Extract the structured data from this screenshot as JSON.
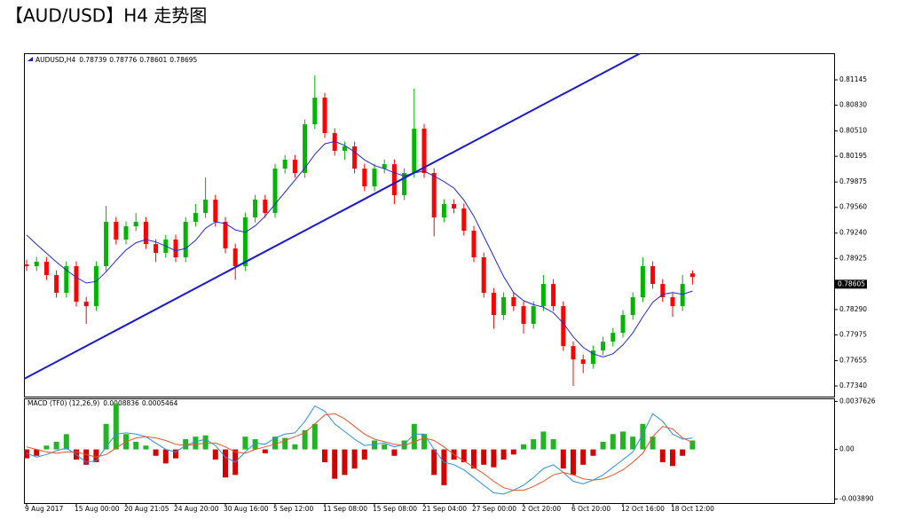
{
  "chart_data": {
    "type": "candlestick",
    "title": "【AUD/USD】H4 走势图",
    "symbol_label": "AUDUSD,H4",
    "categories": [
      "9 Aug 2017",
      null,
      null,
      null,
      null,
      "15 Aug 00:00",
      null,
      null,
      null,
      null,
      "20 Aug 21:05",
      null,
      null,
      null,
      null,
      "24 Aug 20:00",
      null,
      null,
      null,
      null,
      "30 Aug 16:00",
      null,
      null,
      null,
      null,
      "5 Sep 12:00",
      null,
      null,
      null,
      null,
      "11 Sep 08:00",
      null,
      null,
      null,
      null,
      "15 Sep 08:00",
      null,
      null,
      null,
      null,
      "21 Sep 04:00",
      null,
      null,
      null,
      null,
      "27 Sep 00:00",
      null,
      null,
      null,
      null,
      "2 Oct 20:00",
      null,
      null,
      null,
      null,
      "6 Oct 20:00",
      null,
      null,
      null,
      null,
      "12 Oct 16:00",
      null,
      null,
      null,
      null,
      "18 Oct 12:00",
      null,
      null
    ],
    "open": [
      0.7885,
      0.78829,
      0.78884,
      0.78718,
      0.78498,
      0.78829,
      0.78387,
      0.78332,
      0.78829,
      0.7938,
      0.7916,
      0.79325,
      0.7938,
      0.79104,
      0.78994,
      0.7916,
      0.78939,
      0.7938,
      0.7949,
      0.79656,
      0.7938,
      0.79049,
      0.78829,
      0.79435,
      0.79656,
      0.7949,
      0.80042,
      0.80152,
      0.79987,
      0.80593,
      0.80924,
      0.80483,
      0.80263,
      0.80318,
      0.80042,
      0.79821,
      0.80042,
      0.80097,
      0.79711,
      0.79987,
      0.80538,
      0.79987,
      0.79435,
      0.79601,
      0.79546,
      0.7927,
      0.78939,
      0.78498,
      0.78222,
      0.78443,
      0.78332,
      0.78112,
      0.78332,
      0.78608,
      0.78332,
      0.77836,
      0.7767,
      0.77615,
      0.77781,
      0.77891,
      0.78001,
      0.78222,
      0.78443,
      0.78829,
      0.78608,
      0.78443,
      0.78332,
      0.78739
    ],
    "high": [
      0.7891,
      0.78944,
      0.78944,
      0.78778,
      0.78889,
      0.78889,
      0.78447,
      0.78889,
      0.79579,
      0.7944,
      0.79385,
      0.7949,
      0.7944,
      0.79164,
      0.7922,
      0.7922,
      0.7944,
      0.79601,
      0.79932,
      0.79716,
      0.7944,
      0.79109,
      0.79495,
      0.79716,
      0.79716,
      0.80102,
      0.80207,
      0.80212,
      0.80653,
      0.812,
      0.80984,
      0.80543,
      0.80378,
      0.80378,
      0.80102,
      0.80102,
      0.80157,
      0.80157,
      0.80047,
      0.81035,
      0.80598,
      0.80047,
      0.79661,
      0.79661,
      0.79606,
      0.7933,
      0.78999,
      0.78558,
      0.78503,
      0.78503,
      0.78392,
      0.78392,
      0.7872,
      0.78668,
      0.78392,
      0.77896,
      0.7773,
      0.77841,
      0.77951,
      0.78061,
      0.78282,
      0.78503,
      0.78939,
      0.78889,
      0.78668,
      0.78503,
      0.7872,
      0.78776
    ],
    "low": [
      0.7877,
      0.78769,
      0.78658,
      0.78438,
      0.78438,
      0.78327,
      0.78112,
      0.78272,
      0.78769,
      0.791,
      0.791,
      0.79265,
      0.79044,
      0.7888,
      0.78934,
      0.78879,
      0.78879,
      0.7932,
      0.7943,
      0.7932,
      0.78989,
      0.7866,
      0.78769,
      0.79375,
      0.7943,
      0.7943,
      0.79982,
      0.79927,
      0.79927,
      0.80533,
      0.80423,
      0.80203,
      0.8015,
      0.79982,
      0.79761,
      0.79761,
      0.79982,
      0.796,
      0.79651,
      0.79927,
      0.79927,
      0.792,
      0.79375,
      0.79486,
      0.7921,
      0.78879,
      0.78438,
      0.7805,
      0.78162,
      0.78272,
      0.7799,
      0.78052,
      0.78272,
      0.78272,
      0.77776,
      0.7734,
      0.775,
      0.77555,
      0.77721,
      0.77831,
      0.77941,
      0.78162,
      0.78383,
      0.78548,
      0.78383,
      0.782,
      0.78272,
      0.78601
    ],
    "close": [
      0.78829,
      0.78884,
      0.78718,
      0.78498,
      0.78829,
      0.78387,
      0.78332,
      0.78829,
      0.7938,
      0.7916,
      0.79325,
      0.7938,
      0.79104,
      0.78994,
      0.7916,
      0.78939,
      0.7938,
      0.7949,
      0.79656,
      0.7938,
      0.79049,
      0.78829,
      0.79435,
      0.79656,
      0.7949,
      0.80042,
      0.80152,
      0.79987,
      0.80593,
      0.80924,
      0.80483,
      0.80263,
      0.80318,
      0.80042,
      0.79821,
      0.80042,
      0.80097,
      0.79711,
      0.79987,
      0.80538,
      0.79987,
      0.79435,
      0.79601,
      0.79546,
      0.7927,
      0.78939,
      0.78498,
      0.78222,
      0.78443,
      0.78332,
      0.78112,
      0.78332,
      0.78608,
      0.78332,
      0.77836,
      0.7767,
      0.77615,
      0.77781,
      0.77891,
      0.78001,
      0.78222,
      0.78443,
      0.78829,
      0.78608,
      0.78443,
      0.78332,
      0.78608,
      0.78695
    ],
    "up_color": "#00b400",
    "down_color": "#ff0000",
    "ma": {
      "color": "#1f2bd6",
      "values": [
        0.79215,
        0.791,
        0.7899,
        0.7888,
        0.7878,
        0.7869,
        0.7862,
        0.7864,
        0.7876,
        0.789,
        0.7903,
        0.7912,
        0.7916,
        0.7913,
        0.7908,
        0.7902,
        0.7905,
        0.7915,
        0.793,
        0.7938,
        0.7936,
        0.7928,
        0.7925,
        0.7933,
        0.7945,
        0.796,
        0.7975,
        0.799,
        0.8005,
        0.8022,
        0.8035,
        0.8038,
        0.8033,
        0.8025,
        0.8015,
        0.8008,
        0.8004,
        0.7999,
        0.7995,
        0.7999,
        0.8001,
        0.7995,
        0.7988,
        0.798,
        0.7965,
        0.7945,
        0.792,
        0.7895,
        0.787,
        0.785,
        0.784,
        0.7835,
        0.7832,
        0.7825,
        0.7812,
        0.7795,
        0.7782,
        0.7774,
        0.777,
        0.7774,
        0.7785,
        0.78,
        0.782,
        0.7838,
        0.7848,
        0.785,
        0.7848,
        0.7852
      ]
    },
    "trendline": {
      "color": "#1a1ad0",
      "x": [
        -0.25,
        61.76
      ],
      "y": [
        0.77428,
        0.81476
      ]
    },
    "last_price": 0.78605,
    "ylim": [
      0.77208,
      0.81476
    ],
    "yticks": [
      0.81145,
      {
        "value": 0.8083,
        "label": "0.80830"
      },
      {
        "value": 0.8051,
        "label": "0.80510"
      },
      0.80195,
      0.79875,
      {
        "value": 0.7956,
        "label": "0.79560"
      },
      {
        "value": 0.7924,
        "label": "0.79240"
      },
      0.78925,
      {
        "value": 0.7861,
        "label": "0.78610"
      },
      {
        "value": 0.7829,
        "label": "0.78290"
      },
      0.77975,
      0.77655,
      {
        "value": 0.7734,
        "label": "0.77340"
      }
    ],
    "macd": {
      "label": "MACD (TF0) (12,26,9)",
      "histogram": [
        -0.0007,
        -0.0005,
        0.0003,
        0.0006,
        0.0012,
        -0.0008,
        -0.0012,
        -0.001,
        0.002,
        0.0036,
        0.0012,
        0.0006,
        0.0003,
        -0.0005,
        -0.0011,
        -0.0007,
        0.0008,
        0.001,
        0.0011,
        -0.0008,
        -0.0022,
        -0.002,
        0.001,
        0.0008,
        -0.0003,
        0.001,
        0.0009,
        0.0004,
        0.0015,
        0.002,
        -0.001,
        -0.0023,
        -0.002,
        -0.0015,
        -0.0008,
        0.0007,
        0.0004,
        -0.0005,
        0.0007,
        0.002,
        0.0012,
        -0.002,
        -0.0028,
        -0.0008,
        -0.001,
        -0.0015,
        -0.0012,
        -0.0014,
        -0.0008,
        -0.0004,
        0.0004,
        0.0008,
        0.0014,
        0.0008,
        -0.0015,
        -0.002,
        -0.0012,
        -0.0005,
        0.0006,
        0.0012,
        0.0014,
        0.001,
        0.002,
        0.001,
        -0.001,
        -0.0013,
        -0.0005,
        0.0007
      ],
      "macd": [
        -0.0003,
        -0.0006,
        -0.0004,
        -0.0001,
        0.0001,
        -0.0004,
        -0.001,
        -0.0009,
        0.0002,
        0.0012,
        0.0013,
        0.0012,
        0.001,
        0.0005,
        0.0,
        -0.0002,
        0.0003,
        0.0006,
        0.0008,
        0.0003,
        -0.0006,
        -0.001,
        -0.0002,
        0.0005,
        0.0004,
        0.0009,
        0.0012,
        0.0013,
        0.0022,
        0.0034,
        0.003,
        0.002,
        0.0014,
        0.0008,
        0.0003,
        0.0004,
        0.0005,
        0.0002,
        0.0004,
        0.0012,
        0.0012,
        0.0,
        -0.001,
        -0.0012,
        -0.0016,
        -0.0022,
        -0.0028,
        -0.0034,
        -0.0035,
        -0.0032,
        -0.0028,
        -0.0022,
        -0.0015,
        -0.0012,
        -0.0018,
        -0.0025,
        -0.0027,
        -0.0024,
        -0.002,
        -0.0014,
        -0.0008,
        -0.0002,
        0.0012,
        0.0028,
        0.0022,
        0.0012,
        0.0008,
        0.0008836
      ],
      "signal": [
        0.0002,
        0.0,
        -0.0002,
        -0.0003,
        -0.0002,
        -0.0002,
        -0.0004,
        -0.0006,
        -0.0004,
        0.0001,
        0.0006,
        0.0009,
        0.001,
        0.0009,
        0.0007,
        0.0004,
        0.0003,
        0.0004,
        0.0005,
        0.0005,
        0.0002,
        -0.0002,
        -0.0003,
        0.0,
        0.0002,
        0.0004,
        0.0007,
        0.001,
        0.0013,
        0.002,
        0.0027,
        0.0028,
        0.0024,
        0.0018,
        0.0012,
        0.0008,
        0.0006,
        0.0004,
        0.0003,
        0.0006,
        0.0009,
        0.0007,
        0.0002,
        -0.0004,
        -0.0009,
        -0.0014,
        -0.0019,
        -0.0025,
        -0.003,
        -0.0032,
        -0.0032,
        -0.0029,
        -0.0025,
        -0.002,
        -0.0018,
        -0.002,
        -0.0023,
        -0.0024,
        -0.0023,
        -0.002,
        -0.0016,
        -0.001,
        -0.0003,
        0.001,
        0.0018,
        0.0016,
        0.0009,
        0.0005464
      ],
      "up_color": "#22b422",
      "down_color": "#d40000",
      "macd_color": "#2b8fe8",
      "signal_color": "#e8552b",
      "ylim": [
        -0.0042,
        0.004
      ],
      "yticks": [
        {
          "value": 0.0037626,
          "label": "0.0037626"
        },
        {
          "value": 0,
          "label": "0.00"
        },
        {
          "value": -0.00389,
          "label": "-0.003890"
        }
      ]
    }
  }
}
